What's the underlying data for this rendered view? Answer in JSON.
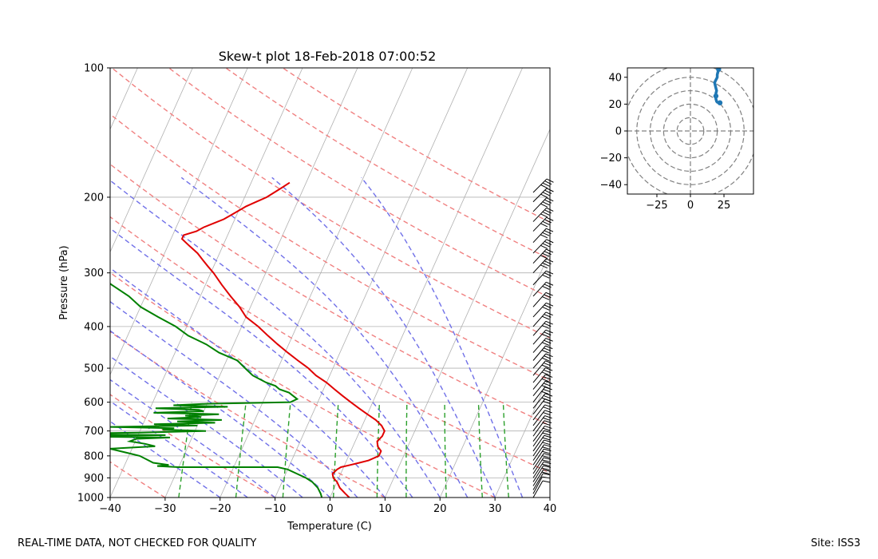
{
  "footer": {
    "quality_note": "REAL-TIME DATA, NOT CHECKED FOR QUALITY",
    "site": "Site: ISS3"
  },
  "chart_data": [
    {
      "type": "line",
      "title": "Skew-t plot 18-Feb-2018 07:00:52",
      "xlabel": "Temperature (C)",
      "ylabel": "Pressure (hPa)",
      "xlim": [
        -40,
        40
      ],
      "ylim": [
        1000,
        100
      ],
      "yscale": "log",
      "skew": 35,
      "grid": true,
      "xticks": [
        -40,
        -30,
        -20,
        -10,
        0,
        10,
        20,
        30,
        40
      ],
      "yticks": [
        100,
        200,
        300,
        400,
        500,
        600,
        700,
        800,
        900,
        1000
      ],
      "colors": {
        "temperature": "#e00000",
        "dewpoint": "#008000",
        "dry_adiabats": "#f08080",
        "moist_adiabats": "#7070e8",
        "mixing_ratio": "#2ca02c",
        "isotherms": "#b0b0b0",
        "barbs": "#000000"
      },
      "series": [
        {
          "key": "temperature",
          "pressure": [
            1000,
            980,
            950,
            920,
            900,
            880,
            860,
            850,
            840,
            830,
            820,
            800,
            780,
            760,
            740,
            720,
            700,
            680,
            660,
            640,
            620,
            600,
            580,
            560,
            540,
            520,
            500,
            480,
            460,
            440,
            420,
            400,
            380,
            360,
            340,
            320,
            300,
            290,
            280,
            270,
            260,
            255,
            250,
            245,
            240,
            235,
            230,
            225,
            220,
            215,
            210,
            205,
            200,
            195,
            190,
            185
          ],
          "values": [
            3.5,
            2.5,
            1,
            0,
            -1,
            -1.5,
            -1,
            -0.5,
            1,
            2.5,
            4,
            5.5,
            5.5,
            4.5,
            4,
            4.5,
            4.5,
            3.5,
            2,
            0,
            -2,
            -4,
            -6,
            -8,
            -10,
            -12.5,
            -14.5,
            -17,
            -19.5,
            -22,
            -24.5,
            -27,
            -30,
            -32,
            -34.5,
            -37,
            -39.5,
            -41,
            -42.5,
            -44,
            -46,
            -47,
            -48,
            -48,
            -46,
            -45,
            -43.5,
            -42,
            -41,
            -40,
            -39,
            -37.5,
            -36,
            -35,
            -34,
            -33
          ]
        },
        {
          "key": "dewpoint",
          "pressure": [
            1000,
            980,
            950,
            920,
            900,
            880,
            860,
            850,
            850,
            845,
            840,
            830,
            820,
            800,
            790,
            780,
            770,
            760,
            750,
            740,
            730,
            725,
            722,
            719,
            716,
            713,
            710,
            706,
            700,
            695,
            690,
            685,
            680,
            675,
            670,
            665,
            660,
            655,
            650,
            645,
            640,
            635,
            630,
            625,
            620,
            615,
            610,
            605,
            600,
            590,
            580,
            570,
            560,
            550,
            540,
            520,
            500,
            480,
            460,
            440,
            420,
            400,
            380,
            360,
            340,
            320,
            300,
            290,
            280,
            270,
            260,
            250,
            240,
            230,
            225,
            220,
            215,
            210,
            205,
            200,
            195,
            190,
            185,
            180
          ],
          "values": [
            -1.5,
            -2,
            -3,
            -4.5,
            -6,
            -8,
            -10,
            -12,
            -30,
            -34,
            -32,
            -35,
            -36,
            -38,
            -40,
            -42,
            -44,
            -36,
            -38,
            -41,
            -40,
            -34,
            -47,
            -52,
            -35,
            -48,
            -54,
            -40,
            -28,
            -36,
            -34,
            -46,
            -30,
            -38,
            -27,
            -34,
            -26,
            -36,
            -30,
            -33,
            -27,
            -39,
            -30,
            -31,
            -39,
            -26,
            -36,
            -30,
            -15,
            -14,
            -15,
            -16,
            -18,
            -19,
            -21,
            -24,
            -26,
            -28,
            -32,
            -35,
            -39,
            -42,
            -46,
            -50,
            -53,
            -57,
            -61,
            -63,
            -63,
            -61,
            -68,
            -71,
            -75,
            -78,
            -80,
            -79,
            -82,
            -83,
            -86,
            -87,
            -86,
            -84,
            -84,
            -83
          ]
        }
      ],
      "wind_barbs": {
        "pressure": [
          1000,
          980,
          960,
          940,
          920,
          900,
          880,
          860,
          840,
          820,
          800,
          780,
          760,
          740,
          720,
          700,
          680,
          660,
          640,
          620,
          600,
          580,
          560,
          540,
          520,
          500,
          480,
          460,
          440,
          420,
          400,
          380,
          360,
          340,
          320,
          300,
          285,
          270,
          255,
          240,
          228,
          216,
          205,
          195
        ],
        "u": [
          8,
          8,
          9,
          10,
          10,
          11,
          11,
          12,
          12,
          13,
          13,
          14,
          14,
          15,
          15,
          16,
          16,
          17,
          17,
          18,
          18,
          19,
          19,
          20,
          20,
          21,
          21,
          22,
          22,
          23,
          23,
          24,
          24,
          25,
          25,
          26,
          26,
          27,
          27,
          28,
          28,
          29,
          30,
          30
        ],
        "v": [
          14,
          15,
          15,
          16,
          16,
          17,
          17,
          18,
          18,
          19,
          19,
          20,
          20,
          20,
          21,
          21,
          21,
          22,
          22,
          22,
          23,
          23,
          23,
          24,
          24,
          24,
          25,
          25,
          25,
          26,
          26,
          26,
          27,
          27,
          27,
          28,
          28,
          28,
          29,
          29,
          29,
          30,
          30,
          30
        ]
      }
    },
    {
      "type": "line",
      "title": "",
      "xlim": [
        -47,
        47
      ],
      "ylim": [
        -47,
        47
      ],
      "xticks": [
        -25,
        0,
        25
      ],
      "yticks": [
        -40,
        -20,
        0,
        20,
        40
      ],
      "rings": [
        10,
        20,
        30,
        40,
        50
      ],
      "color": "#1f77b4",
      "series": [
        {
          "name": "",
          "u": [
            22,
            21,
            20,
            19.5,
            19,
            19,
            19,
            19.5,
            19,
            18.5,
            18,
            18.5,
            19,
            19.5,
            20,
            20,
            20.5,
            21,
            21
          ],
          "v": [
            21,
            21,
            21.5,
            22,
            24,
            26,
            28,
            30,
            32,
            34,
            36,
            37,
            38,
            39,
            40,
            42,
            44,
            45,
            46
          ]
        }
      ]
    }
  ]
}
